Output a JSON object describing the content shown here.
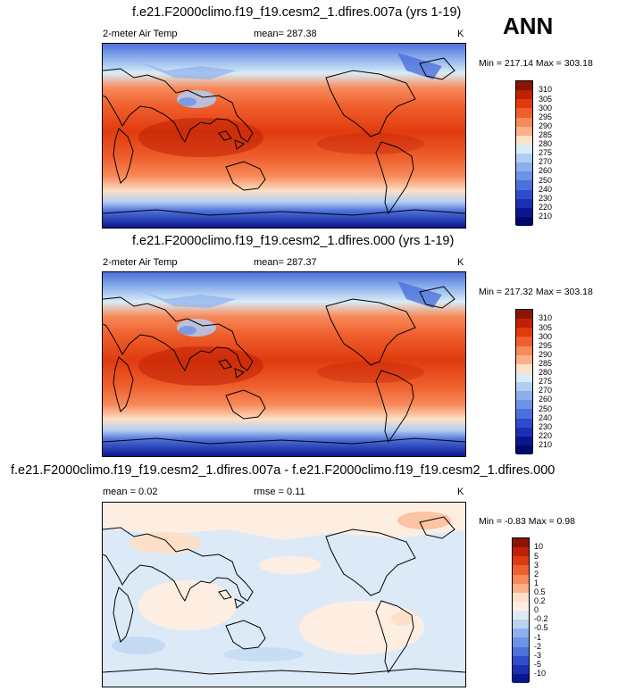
{
  "season": "ANN",
  "panels": [
    {
      "title": "f.e21.F2000climo.f19_f19.cesm2_1.dfires.007a (yrs 1-19)",
      "left_label": "2-meter Air Temp",
      "center_label": "mean= 287.38",
      "units": "K",
      "minmax": "Min = 217.14 Max = 303.18",
      "levels": [
        "310",
        "305",
        "300",
        "295",
        "290",
        "285",
        "280",
        "275",
        "270",
        "260",
        "250",
        "240",
        "230",
        "220",
        "210"
      ],
      "colors": [
        "#8a1503",
        "#c02006",
        "#e03b0e",
        "#ef5f2d",
        "#f78a5a",
        "#fbb08a",
        "#fde0c8",
        "#d8ecf6",
        "#b2cdf2",
        "#8cb0ec",
        "#6d92e6",
        "#4d71da",
        "#2f4ccd",
        "#1b2fb3",
        "#0a1690",
        "#000a66"
      ]
    },
    {
      "title": "f.e21.F2000climo.f19_f19.cesm2_1.dfires.000 (yrs 1-19)",
      "left_label": "2-meter Air Temp",
      "center_label": "mean= 287.37",
      "units": "K",
      "minmax": "Min = 217.32 Max = 303.18",
      "levels": [
        "310",
        "305",
        "300",
        "295",
        "290",
        "285",
        "280",
        "275",
        "270",
        "260",
        "250",
        "240",
        "230",
        "220",
        "210"
      ],
      "colors": [
        "#8a1503",
        "#c02006",
        "#e03b0e",
        "#ef5f2d",
        "#f78a5a",
        "#fbb08a",
        "#fde0c8",
        "#d8ecf6",
        "#b2cdf2",
        "#8cb0ec",
        "#6d92e6",
        "#4d71da",
        "#2f4ccd",
        "#1b2fb3",
        "#0a1690",
        "#000a66"
      ]
    },
    {
      "title": "f.e21.F2000climo.f19_f19.cesm2_1.dfires.007a - f.e21.F2000climo.f19_f19.cesm2_1.dfires.000",
      "left_label": "mean =   0.02",
      "center_label": "rmse =   0.11",
      "units": "K",
      "minmax": "Min = -0.83 Max =   0.98",
      "levels": [
        "10",
        "5",
        "3",
        "2",
        "1",
        "0.5",
        "0.2",
        "0",
        "-0.2",
        "-0.5",
        "-1",
        "-2",
        "-3",
        "-5",
        "-10"
      ],
      "colors": [
        "#8a1503",
        "#c02006",
        "#e03b0e",
        "#ef5f2d",
        "#f78a5a",
        "#fbb08a",
        "#fde0c8",
        "#feeee2",
        "#dceaf8",
        "#b9d3f1",
        "#8cb0ec",
        "#6d92e6",
        "#4d71da",
        "#2f4ccd",
        "#1b2fb3",
        "#0a1690"
      ]
    }
  ]
}
